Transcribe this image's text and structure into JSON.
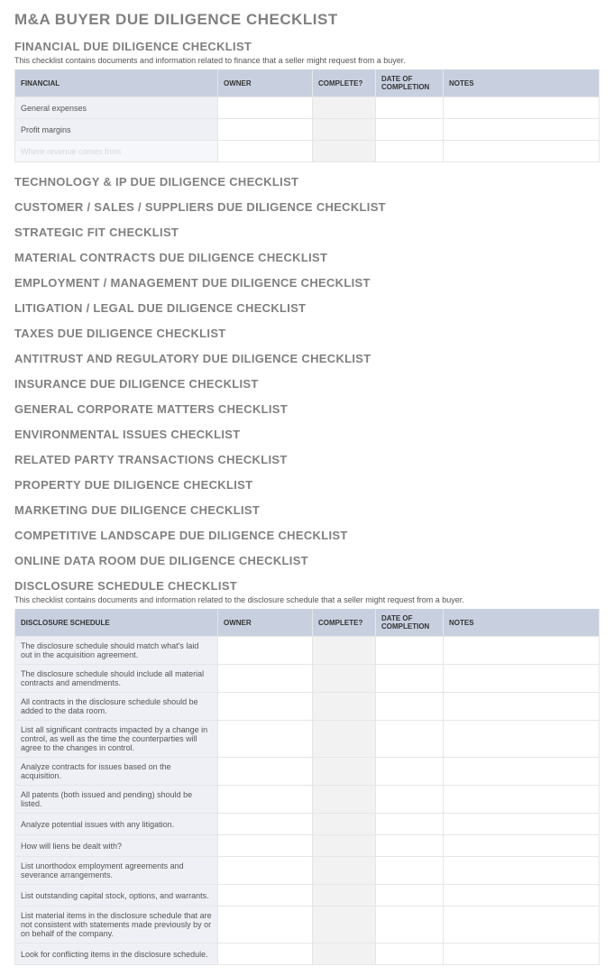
{
  "mainTitle": "M&A BUYER DUE DILIGENCE CHECKLIST",
  "financial": {
    "title": "FINANCIAL DUE DILIGENCE CHECKLIST",
    "desc": "This checklist contains documents and information related to finance that a seller might request from a buyer.",
    "columns": [
      "FINANCIAL",
      "OWNER",
      "COMPLETE?",
      "DATE OF COMPLETION",
      "NOTES"
    ],
    "rows": [
      {
        "label": "General expenses",
        "fade": false
      },
      {
        "label": "Profit margins",
        "fade": false
      },
      {
        "label": "Where revenue comes from",
        "fade": true
      }
    ]
  },
  "middleSections": [
    "TECHNOLOGY & IP DUE DILIGENCE CHECKLIST",
    "CUSTOMER / SALES / SUPPLIERS DUE DILIGENCE CHECKLIST",
    "STRATEGIC FIT CHECKLIST",
    "MATERIAL CONTRACTS DUE DILIGENCE CHECKLIST",
    "EMPLOYMENT / MANAGEMENT DUE DILIGENCE CHECKLIST",
    "LITIGATION / LEGAL DUE DILIGENCE CHECKLIST",
    "TAXES DUE DILIGENCE CHECKLIST",
    "ANTITRUST AND REGULATORY DUE DILIGENCE CHECKLIST",
    "INSURANCE DUE DILIGENCE CHECKLIST",
    "GENERAL CORPORATE MATTERS CHECKLIST",
    "ENVIRONMENTAL ISSUES CHECKLIST",
    "RELATED PARTY TRANSACTIONS CHECKLIST",
    "PROPERTY DUE DILIGENCE CHECKLIST",
    "MARKETING DUE DILIGENCE CHECKLIST",
    "COMPETITIVE LANDSCAPE DUE DILIGENCE CHECKLIST",
    "ONLINE DATA ROOM DUE DILIGENCE CHECKLIST"
  ],
  "disclosure": {
    "title": "DISCLOSURE SCHEDULE CHECKLIST",
    "desc": "This checklist contains documents and information related to the disclosure schedule that a seller might request from a buyer.",
    "columns": [
      "DISCLOSURE SCHEDULE",
      "OWNER",
      "COMPLETE?",
      "DATE OF COMPLETION",
      "NOTES"
    ],
    "rows": [
      "The disclosure schedule should match what's laid out in the acquisition agreement.",
      "The disclosure schedule should include all material contracts and amendments.",
      "All contracts in the disclosure schedule should be added to the data room.",
      "List all significant contracts impacted by a change in control, as well as the time the counterparties will agree to the changes in control.",
      "Analyze contracts for issues based on the acquisition.",
      "All patents (both issued and pending) should be listed.",
      "Analyze potential issues with any litigation.",
      "How will liens be dealt with?",
      "List unorthodox employment agreements and severance arrangements.",
      "List outstanding capital stock, options, and warrants.",
      "List material items in the disclosure schedule that are not consistent with statements made previously by or on behalf of the company.",
      "Look for conflicting items in the disclosure schedule."
    ]
  }
}
